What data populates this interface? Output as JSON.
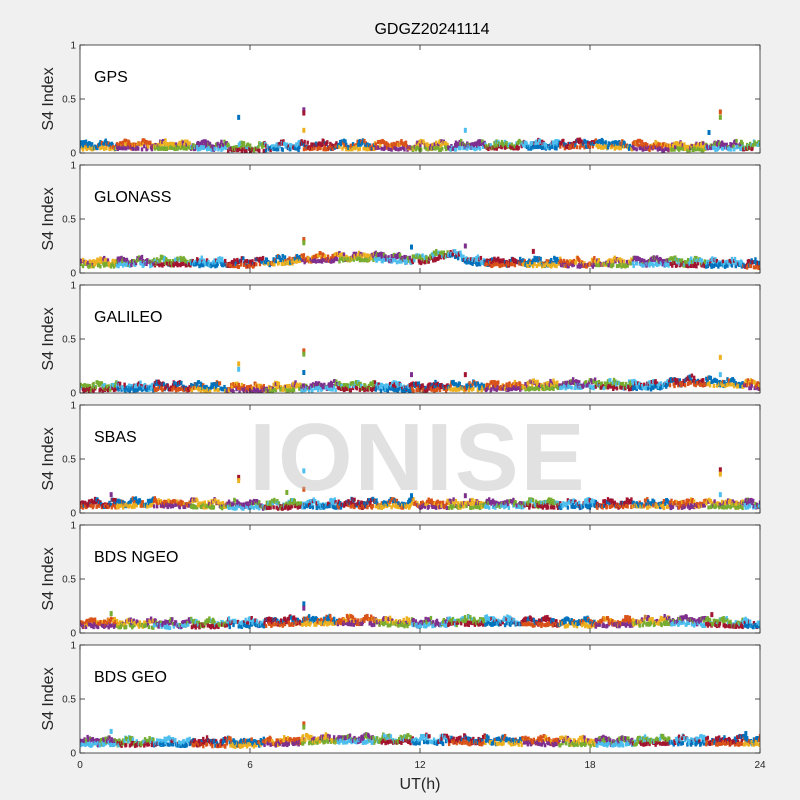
{
  "title": "GDGZ20241114",
  "watermark": "IONISE",
  "colors": [
    "#0072bd",
    "#d95319",
    "#edb120",
    "#7e2f8e",
    "#77ac30",
    "#4dbeee",
    "#a2142f"
  ],
  "chart_data": {
    "type": "scatter",
    "title": "GDGZ20241114",
    "xlabel": "UT(h)",
    "ylabel": "S4 Index",
    "xlim": [
      0,
      24
    ],
    "ylim": [
      0,
      1
    ],
    "xticks": [
      0,
      6,
      12,
      18,
      24
    ],
    "yticks": [
      0,
      0.5,
      1
    ],
    "ytick_labels": [
      "0",
      "0.5",
      "1"
    ],
    "grid": false,
    "panels": [
      {
        "name": "GPS",
        "baseline": [
          [
            0,
            0.07
          ],
          [
            3,
            0.08
          ],
          [
            6,
            0.06
          ],
          [
            9,
            0.08
          ],
          [
            12,
            0.07
          ],
          [
            15,
            0.08
          ],
          [
            18,
            0.09
          ],
          [
            21,
            0.06
          ],
          [
            24,
            0.08
          ]
        ],
        "spikes": [
          [
            5.6,
            0.33
          ],
          [
            7.9,
            0.4
          ],
          [
            7.9,
            0.37
          ],
          [
            7.9,
            0.21
          ],
          [
            13.6,
            0.21
          ],
          [
            22.6,
            0.38
          ],
          [
            22.6,
            0.33
          ],
          [
            22.2,
            0.19
          ]
        ]
      },
      {
        "name": "GLONASS",
        "baseline": [
          [
            0,
            0.1
          ],
          [
            3,
            0.11
          ],
          [
            6,
            0.1
          ],
          [
            8,
            0.14
          ],
          [
            10,
            0.16
          ],
          [
            12,
            0.13
          ],
          [
            13,
            0.19
          ],
          [
            14,
            0.11
          ],
          [
            18,
            0.1
          ],
          [
            21,
            0.11
          ],
          [
            24,
            0.09
          ]
        ],
        "spikes": [
          [
            7.9,
            0.31
          ],
          [
            7.9,
            0.28
          ],
          [
            11.7,
            0.24
          ],
          [
            13.6,
            0.25
          ],
          [
            16.0,
            0.2
          ]
        ]
      },
      {
        "name": "GALILEO",
        "baseline": [
          [
            0,
            0.06
          ],
          [
            3,
            0.07
          ],
          [
            6,
            0.05
          ],
          [
            9,
            0.07
          ],
          [
            12,
            0.06
          ],
          [
            15,
            0.07
          ],
          [
            18,
            0.09
          ],
          [
            20,
            0.07
          ],
          [
            21.5,
            0.12
          ],
          [
            24,
            0.08
          ]
        ],
        "spikes": [
          [
            5.6,
            0.27
          ],
          [
            5.6,
            0.22
          ],
          [
            7.9,
            0.39
          ],
          [
            7.9,
            0.36
          ],
          [
            7.9,
            0.19
          ],
          [
            11.7,
            0.17
          ],
          [
            13.6,
            0.17
          ],
          [
            22.6,
            0.33
          ],
          [
            22.6,
            0.17
          ]
        ]
      },
      {
        "name": "SBAS",
        "baseline": [
          [
            0,
            0.09
          ],
          [
            3,
            0.1
          ],
          [
            6,
            0.08
          ],
          [
            9,
            0.09
          ],
          [
            12,
            0.09
          ],
          [
            15,
            0.09
          ],
          [
            18,
            0.09
          ],
          [
            21,
            0.09
          ],
          [
            24,
            0.09
          ]
        ],
        "spikes": [
          [
            1.1,
            0.17
          ],
          [
            5.6,
            0.33
          ],
          [
            5.6,
            0.3
          ],
          [
            7.9,
            0.39
          ],
          [
            7.9,
            0.22
          ],
          [
            7.3,
            0.19
          ],
          [
            11.7,
            0.16
          ],
          [
            13.6,
            0.16
          ],
          [
            22.6,
            0.4
          ],
          [
            22.6,
            0.36
          ],
          [
            22.6,
            0.17
          ]
        ]
      },
      {
        "name": "BDS NGEO",
        "baseline": [
          [
            0,
            0.1
          ],
          [
            3,
            0.09
          ],
          [
            6,
            0.1
          ],
          [
            8,
            0.12
          ],
          [
            10,
            0.12
          ],
          [
            12,
            0.1
          ],
          [
            14,
            0.12
          ],
          [
            18,
            0.1
          ],
          [
            21,
            0.12
          ],
          [
            24,
            0.09
          ]
        ],
        "spikes": [
          [
            1.1,
            0.18
          ],
          [
            7.9,
            0.27
          ],
          [
            7.9,
            0.23
          ],
          [
            22.3,
            0.17
          ]
        ]
      },
      {
        "name": "BDS GEO",
        "baseline": [
          [
            0,
            0.11
          ],
          [
            3,
            0.11
          ],
          [
            6,
            0.1
          ],
          [
            9,
            0.14
          ],
          [
            12,
            0.13
          ],
          [
            15,
            0.12
          ],
          [
            18,
            0.11
          ],
          [
            21,
            0.12
          ],
          [
            24,
            0.12
          ]
        ],
        "spikes": [
          [
            1.1,
            0.2
          ],
          [
            7.9,
            0.27
          ],
          [
            7.9,
            0.24
          ],
          [
            23.5,
            0.18
          ]
        ]
      }
    ]
  }
}
